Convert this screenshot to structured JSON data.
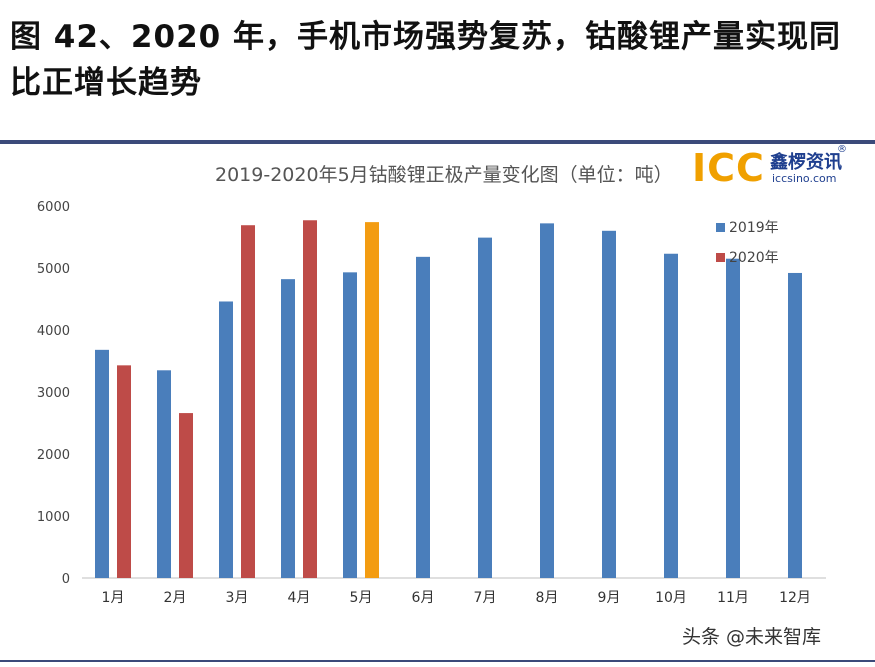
{
  "heading": "图 42、2020 年，手机市场强势复苏，钴酸锂产量实现同比正增长趋势",
  "watermark": "头条 @未来智库",
  "logo": {
    "icc": "ICC",
    "cn": "鑫椤资讯",
    "url": "iccsino.com",
    "reg": "®"
  },
  "chart_data": {
    "type": "bar",
    "title": "2019-2020年5月钴酸锂正极产量变化图（单位：吨）",
    "categories": [
      "1月",
      "2月",
      "3月",
      "4月",
      "5月",
      "6月",
      "7月",
      "8月",
      "9月",
      "10月",
      "11月",
      "12月"
    ],
    "series": [
      {
        "name": "2019年",
        "color": "#4a7ebb",
        "values": [
          3680,
          3350,
          4460,
          4820,
          4930,
          5180,
          5490,
          5720,
          5600,
          5230,
          5150,
          4920
        ]
      },
      {
        "name": "2020年",
        "color": "#be4b48",
        "values": [
          3430,
          2660,
          5690,
          5770,
          5740,
          null,
          null,
          null,
          null,
          null,
          null,
          null
        ]
      }
    ],
    "highlight": {
      "series": 1,
      "index": 4,
      "color": "#f39c12"
    },
    "ylim": [
      0,
      6000
    ],
    "yticks": [
      0,
      1000,
      2000,
      3000,
      4000,
      5000,
      6000
    ],
    "grid": false,
    "legend_position": "top-right"
  }
}
